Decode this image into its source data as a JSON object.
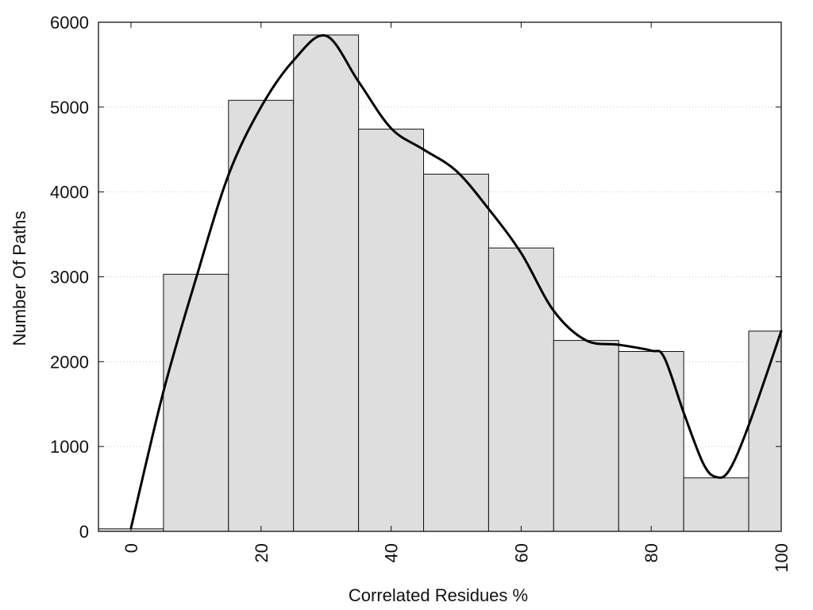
{
  "chart_data": {
    "type": "bar",
    "subtype": "histogram-with-smoothed-curve",
    "title": "",
    "xlabel": "Correlated Residues %",
    "ylabel": "Number Of Paths",
    "xlim": [
      -5,
      100
    ],
    "ylim": [
      0,
      6000
    ],
    "xticks": [
      0,
      20,
      40,
      60,
      80,
      100
    ],
    "yticks": [
      0,
      1000,
      2000,
      3000,
      4000,
      5000,
      6000
    ],
    "x_tick_label_rotation": "vertical",
    "grid": "horizontal-dotted",
    "bar_width": 10,
    "bars": [
      {
        "x": 0,
        "value": 30
      },
      {
        "x": 10,
        "value": 3030
      },
      {
        "x": 20,
        "value": 5080
      },
      {
        "x": 30,
        "value": 5850
      },
      {
        "x": 40,
        "value": 4740
      },
      {
        "x": 50,
        "value": 4210
      },
      {
        "x": 60,
        "value": 3340
      },
      {
        "x": 70,
        "value": 2250
      },
      {
        "x": 80,
        "value": 2120
      },
      {
        "x": 90,
        "value": 630
      },
      {
        "x": 97.5,
        "value": 2360,
        "width": 5
      }
    ],
    "curve": {
      "x": [
        0,
        5,
        10,
        15,
        20,
        25,
        30,
        35,
        40,
        45,
        50,
        55,
        60,
        65,
        70,
        75,
        80,
        82,
        85,
        88,
        90,
        92,
        95,
        100
      ],
      "y": [
        40,
        1650,
        2980,
        4200,
        5000,
        5550,
        5840,
        5300,
        4750,
        4500,
        4250,
        3800,
        3280,
        2600,
        2250,
        2200,
        2130,
        2050,
        1400,
        800,
        640,
        720,
        1250,
        2360
      ]
    },
    "colors": {
      "bar_fill": "#dedede",
      "bar_stroke": "#111111",
      "curve": "#000000",
      "grid": "#c8c8c8"
    }
  }
}
